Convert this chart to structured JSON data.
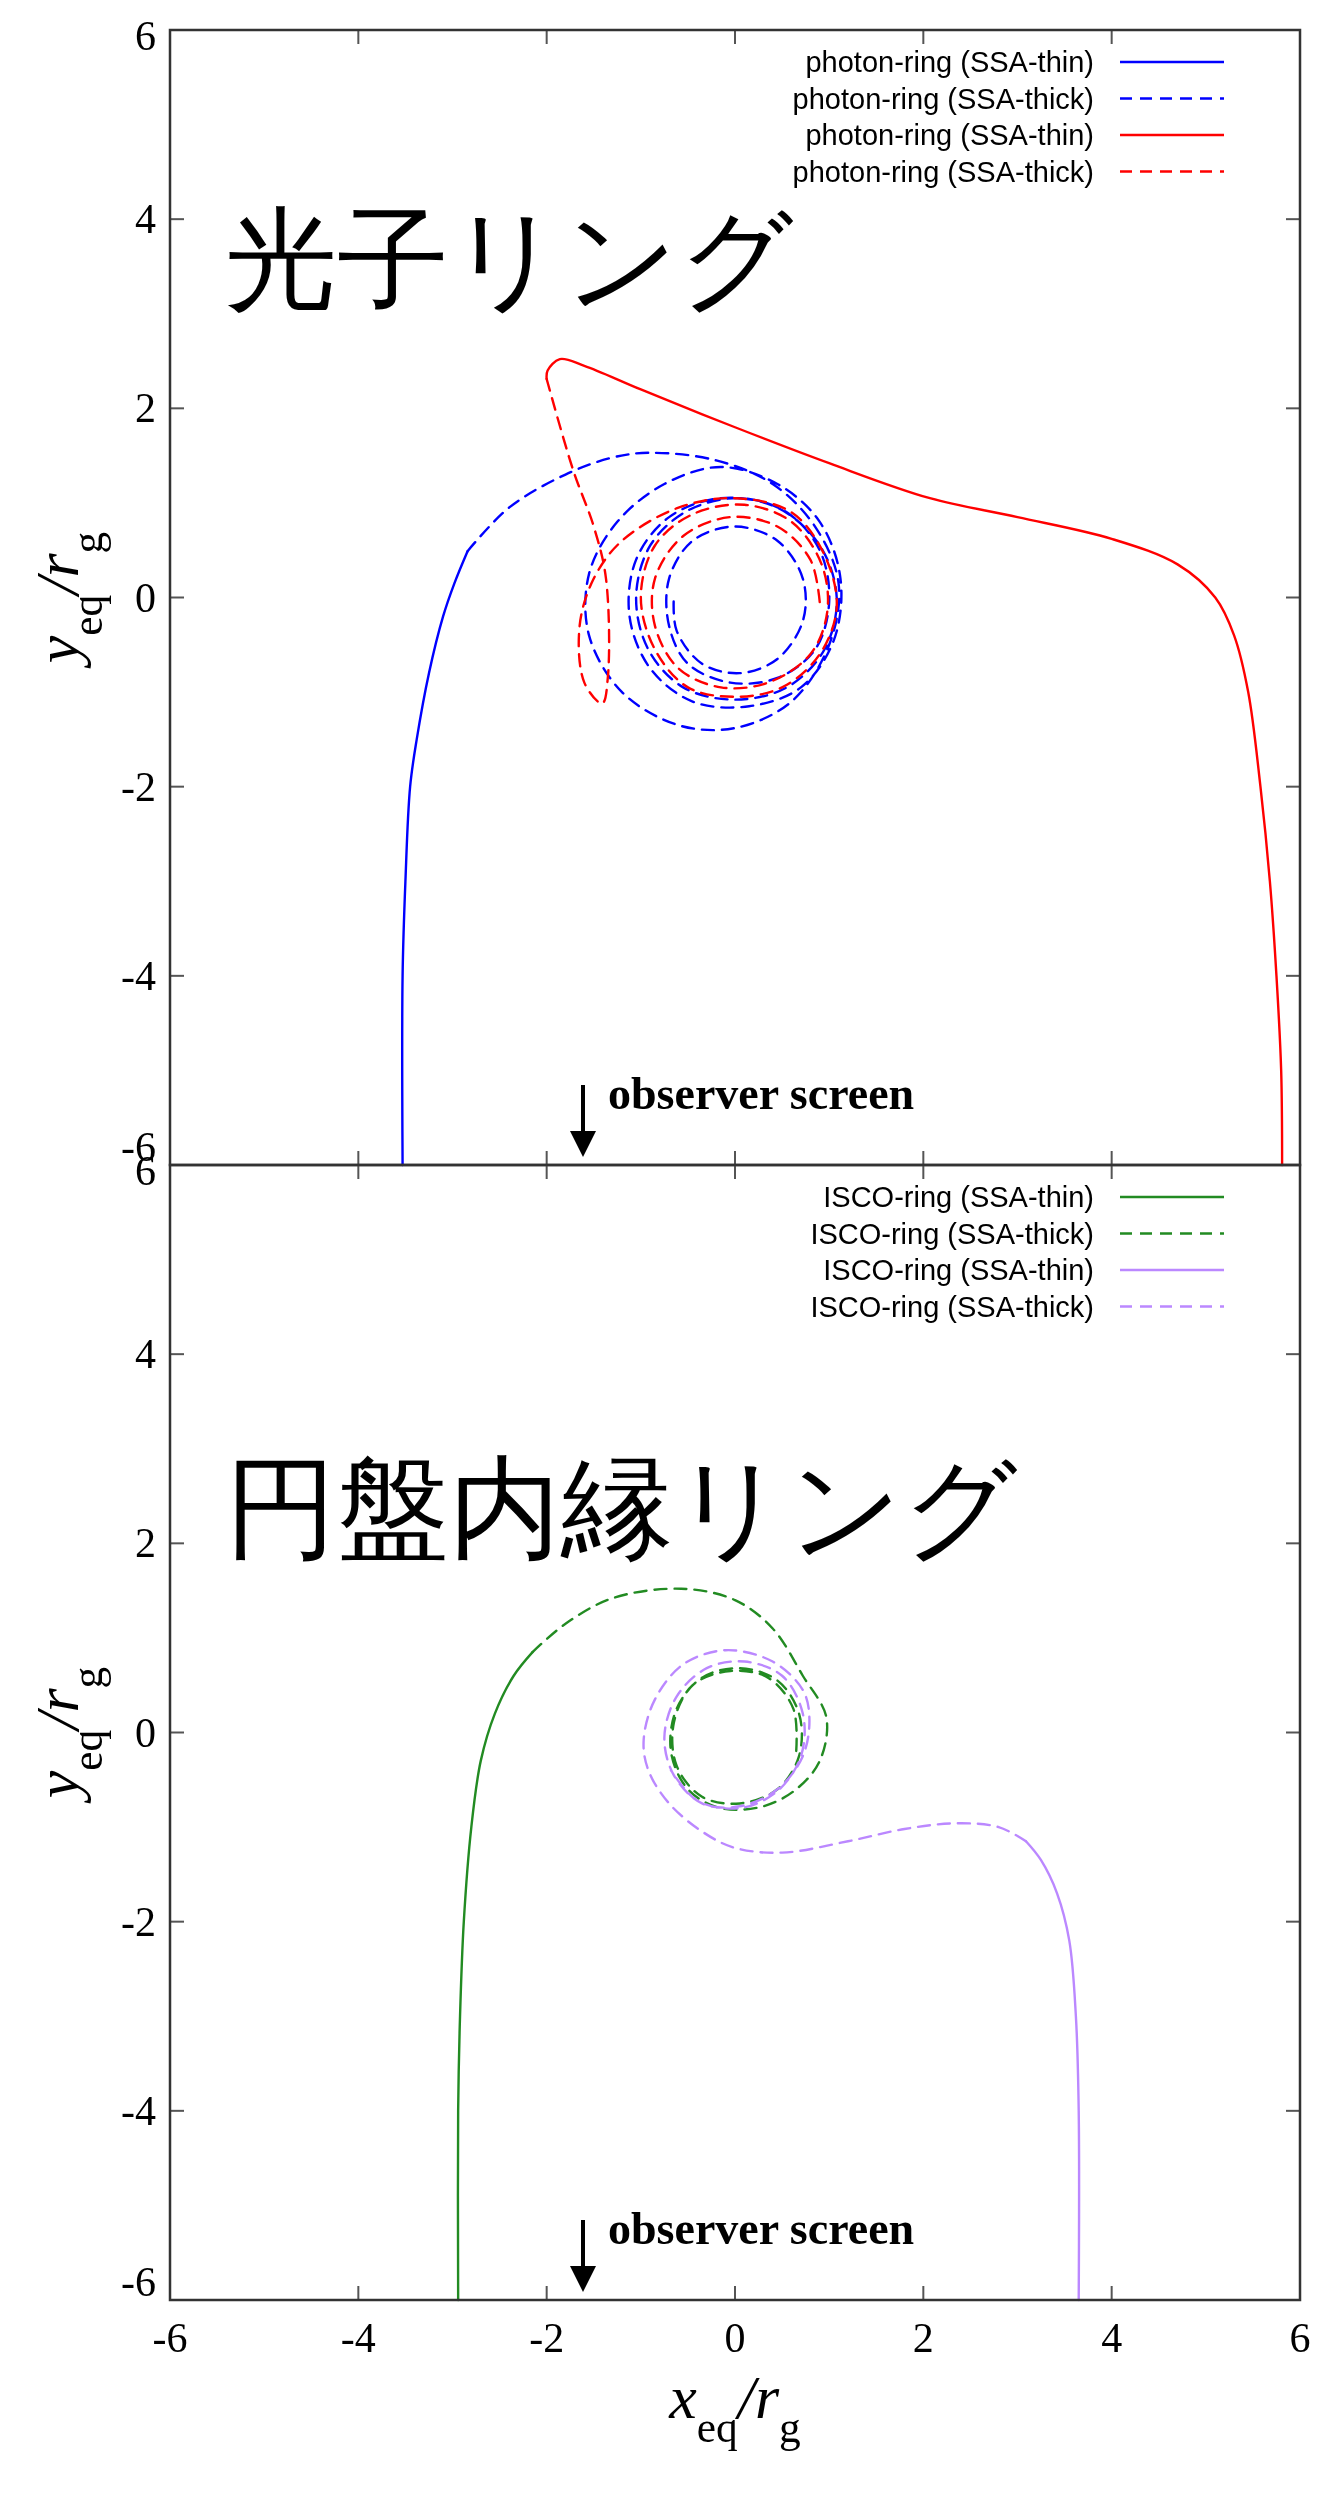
{
  "chart_data": [
    {
      "type": "line",
      "ylabel": "y$_{eq}$/r$_{g}$",
      "xlim": [
        -6,
        6
      ],
      "ylim": [
        -6,
        6
      ],
      "xticks": [
        -6,
        -4,
        -2,
        0,
        2,
        4,
        6
      ],
      "yticks": [
        -6,
        -4,
        -2,
        0,
        2,
        4,
        6
      ],
      "tick_labels": "y",
      "grid": false,
      "legend": "top right",
      "marker": "none",
      "annotations": [
        "光子リング",
        "observer screen"
      ],
      "series": [
        {
          "name": "photon-ring (SSA-thin)",
          "color": "#0000ff",
          "line_style": "solid",
          "x": [
            -3.53,
            -3.53,
            -3.5,
            -3.45,
            -3.38,
            -3.25,
            -3.1,
            -2.98,
            -2.84
          ],
          "values": [
            -6,
            -4,
            -3,
            -2,
            -1.5,
            -0.8,
            -0.2,
            0.15,
            0.49
          ]
        },
        {
          "name": "photon-ring (SSA-thick)",
          "color": "#0000ff",
          "line_style": "dashed",
          "x": [
            -2.84,
            -2.4,
            -1.8,
            -1.3,
            -0.9,
            -0.2,
            0.4,
            0.85,
            1.1,
            1.0,
            0.6,
            0.0,
            -0.6,
            -1.2,
            -1.55,
            -1.55,
            -1.25,
            -0.75,
            -0.15,
            0.45,
            0.9,
            1.12,
            1.05,
            0.7,
            0.15,
            -0.45,
            -0.9,
            -1.12,
            -1.05,
            -0.7,
            -0.15,
            0.45,
            0.9,
            1.08,
            0.95,
            0.55,
            0.0,
            -0.55,
            -0.92,
            -1.05,
            -0.9,
            -0.5,
            0.05,
            0.55,
            0.9,
            1.0,
            0.85,
            0.45,
            -0.05,
            -0.5,
            -0.7,
            -0.7,
            -0.45,
            0.0,
            0.45,
            0.72,
            0.72,
            0.45,
            0.05,
            -0.35,
            -0.62,
            -0.65
          ],
          "values": [
            0.49,
            0.95,
            1.3,
            1.48,
            1.53,
            1.45,
            1.2,
            0.75,
            0.15,
            -0.5,
            -1.1,
            -1.38,
            -1.35,
            -1.0,
            -0.4,
            0.25,
            0.8,
            1.2,
            1.38,
            1.2,
            0.8,
            0.2,
            -0.45,
            -0.95,
            -1.15,
            -1.1,
            -0.75,
            -0.2,
            0.4,
            0.85,
            1.05,
            0.95,
            0.55,
            0.0,
            -0.55,
            -0.95,
            -1.08,
            -0.95,
            -0.55,
            0.0,
            0.55,
            0.92,
            1.05,
            0.9,
            0.5,
            -0.05,
            -0.55,
            -0.85,
            -0.9,
            -0.7,
            -0.3,
            0.2,
            0.6,
            0.75,
            0.6,
            0.2,
            -0.25,
            -0.65,
            -0.8,
            -0.7,
            -0.35,
            0.0
          ]
        },
        {
          "name": "photon-ring (SSA-thin)",
          "color": "#ff0000",
          "line_style": "solid",
          "x": [
            5.81,
            5.8,
            5.75,
            5.68,
            5.58,
            5.45,
            5.3,
            5.1,
            4.7,
            4.0,
            3.0,
            2.07,
            1.0,
            0.0,
            -1.0,
            -1.6,
            -1.86,
            -1.99,
            -2.0
          ],
          "values": [
            -6,
            -5,
            -4,
            -3,
            -2,
            -1,
            -0.4,
            0.0,
            0.35,
            0.62,
            0.85,
            1.05,
            1.42,
            1.8,
            2.2,
            2.45,
            2.52,
            2.4,
            2.31
          ]
        },
        {
          "name": "photon-ring (SSA-thick)",
          "color": "#ff0000",
          "line_style": "dashed",
          "x": [
            -2.0,
            -1.72,
            -1.5,
            -1.37,
            -1.35,
            -1.41,
            -1.6,
            -1.65,
            -1.5,
            -1.2,
            -0.6,
            0.0,
            0.6,
            0.95,
            1.08,
            0.9,
            0.5,
            0.0,
            -0.5,
            -0.85,
            -1.0,
            -0.85,
            -0.45,
            0.1,
            0.6,
            0.92,
            0.98,
            0.8,
            0.35,
            -0.15,
            -0.6,
            -0.85,
            -0.85,
            -0.55,
            -0.05,
            0.45,
            0.8,
            0.9
          ],
          "values": [
            2.31,
            1.35,
            0.75,
            0.2,
            -0.84,
            -1.12,
            -0.9,
            -0.3,
            0.2,
            0.6,
            0.95,
            1.05,
            0.9,
            0.45,
            -0.1,
            -0.6,
            -0.95,
            -1.05,
            -0.95,
            -0.55,
            0.0,
            0.55,
            0.88,
            0.98,
            0.8,
            0.35,
            -0.15,
            -0.6,
            -0.9,
            -0.95,
            -0.75,
            -0.3,
            0.2,
            0.65,
            0.85,
            0.75,
            0.4,
            -0.05
          ]
        }
      ]
    },
    {
      "type": "line",
      "xlabel": "x$_{eq}$/r$_{g}$",
      "ylabel": "y$_{eq}$/r$_{g}$",
      "xlim": [
        -6,
        6
      ],
      "ylim": [
        -6,
        6
      ],
      "xticks": [
        -6,
        -4,
        -2,
        0,
        2,
        4,
        6
      ],
      "yticks": [
        -6,
        -4,
        -2,
        0,
        2,
        4,
        6
      ],
      "grid": false,
      "legend": "top right",
      "marker": "none",
      "annotations": [
        "円盤内縁リング",
        "observer screen"
      ],
      "series": [
        {
          "name": "ISCO-ring (SSA-thin)",
          "color": "#228b22",
          "line_style": "solid",
          "x": [
            -2.94,
            -2.94,
            -2.92,
            -2.88,
            -2.8,
            -2.7,
            -2.55,
            -2.35,
            -2.15
          ],
          "values": [
            -6,
            -4,
            -3,
            -2,
            -1,
            -0.3,
            0.2,
            0.6,
            0.85
          ]
        },
        {
          "name": "ISCO-ring (SSA-thick)",
          "color": "#228b22",
          "line_style": "dashed",
          "x": [
            -2.15,
            -1.8,
            -1.3,
            -0.57,
            0.0,
            0.4,
            0.72,
            0.97,
            0.9,
            0.65,
            0.3,
            -0.15,
            -0.5,
            -0.68,
            -0.62,
            -0.35,
            0.05,
            0.45,
            0.68,
            0.68,
            0.45,
            0.05,
            -0.35,
            -0.62,
            -0.65,
            -0.45,
            -0.05,
            0.35,
            0.62,
            0.65
          ],
          "values": [
            0.85,
            1.15,
            1.42,
            1.52,
            1.4,
            1.1,
            0.6,
            0.16,
            -0.3,
            -0.6,
            -0.78,
            -0.8,
            -0.6,
            -0.2,
            0.25,
            0.58,
            0.68,
            0.55,
            0.2,
            -0.25,
            -0.6,
            -0.75,
            -0.68,
            -0.35,
            0.1,
            0.5,
            0.65,
            0.58,
            0.25,
            -0.2
          ]
        },
        {
          "name": "ISCO-ring (SSA-thin)",
          "color": "#bb88ff",
          "line_style": "solid",
          "x": [
            3.65,
            3.65,
            3.62,
            3.55,
            3.42,
            3.25,
            3.09
          ],
          "values": [
            -6,
            -4,
            -3,
            -2.2,
            -1.7,
            -1.35,
            -1.15
          ]
        },
        {
          "name": "ISCO-ring (SSA-thick)",
          "color": "#bb88ff",
          "line_style": "dashed",
          "x": [
            3.09,
            2.8,
            2.35,
            1.8,
            1.2,
            0.5,
            0.0,
            -0.33,
            -0.7,
            -0.92,
            -0.97,
            -0.85,
            -0.55,
            -0.1,
            0.4,
            0.72,
            0.79,
            0.72,
            0.45,
            0.05,
            -0.35,
            -0.65,
            -0.75,
            -0.62,
            -0.3,
            0.1,
            0.5,
            0.72,
            0.7,
            0.45,
            0.05,
            -0.4,
            -0.68
          ],
          "values": [
            -1.15,
            -1.0,
            -0.96,
            -1.02,
            -1.15,
            -1.27,
            -1.22,
            -1.06,
            -0.75,
            -0.4,
            -0.08,
            0.35,
            0.72,
            0.87,
            0.75,
            0.45,
            0.15,
            -0.25,
            -0.6,
            -0.78,
            -0.75,
            -0.45,
            -0.05,
            0.38,
            0.68,
            0.75,
            0.6,
            0.2,
            -0.25,
            -0.62,
            -0.8,
            -0.72,
            -0.4
          ]
        }
      ]
    }
  ]
}
